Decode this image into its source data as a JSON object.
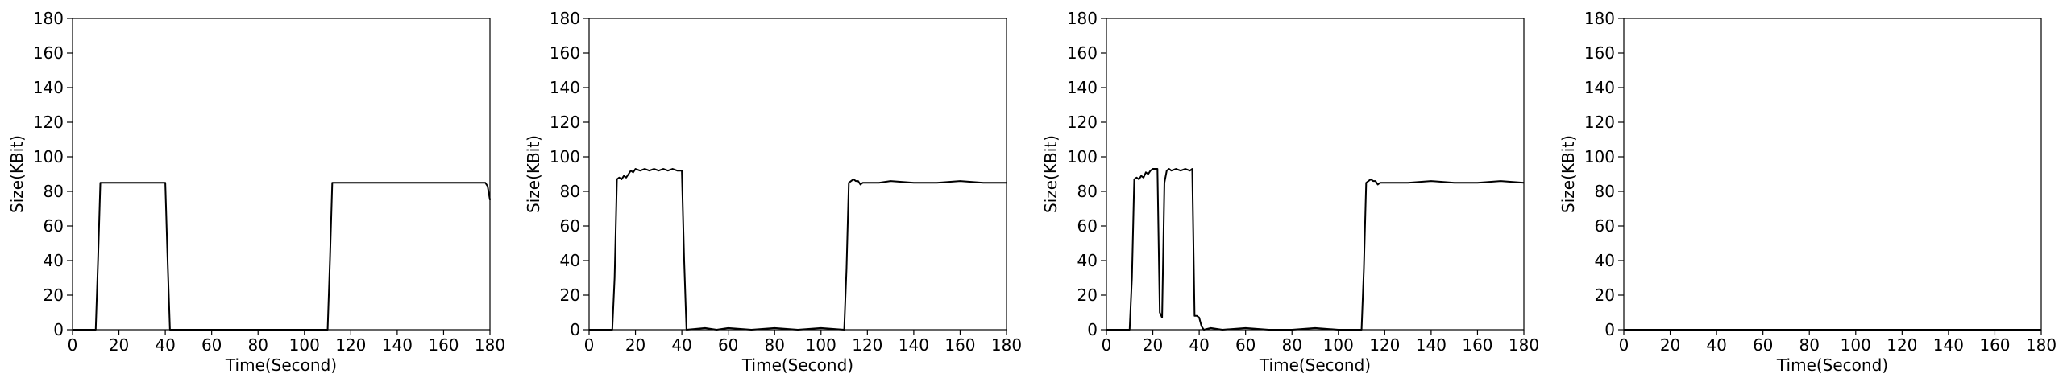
{
  "chart_data": [
    {
      "type": "line",
      "xlabel": "Time(Second)",
      "ylabel": "Size(KBit)",
      "xlim": [
        0,
        180
      ],
      "ylim": [
        0,
        180
      ],
      "xticks": [
        0,
        20,
        40,
        60,
        80,
        100,
        120,
        140,
        160,
        180
      ],
      "yticks": [
        0,
        20,
        40,
        60,
        80,
        100,
        120,
        140,
        160,
        180
      ],
      "grid": false,
      "line_color": "#000000",
      "series": [
        {
          "x": [
            0,
            10,
            11,
            12,
            20,
            30,
            39,
            40,
            41,
            42,
            60,
            80,
            100,
            110,
            111,
            112,
            130,
            150,
            170,
            178,
            179,
            180
          ],
          "y": [
            0,
            0,
            40,
            85,
            85,
            85,
            85,
            85,
            40,
            0,
            0,
            0,
            0,
            0,
            40,
            85,
            85,
            85,
            85,
            85,
            83,
            75
          ]
        }
      ]
    },
    {
      "type": "line",
      "xlabel": "Time(Second)",
      "ylabel": "Size(KBit)",
      "xlim": [
        0,
        180
      ],
      "ylim": [
        0,
        180
      ],
      "xticks": [
        0,
        20,
        40,
        60,
        80,
        100,
        120,
        140,
        160,
        180
      ],
      "yticks": [
        0,
        20,
        40,
        60,
        80,
        100,
        120,
        140,
        160,
        180
      ],
      "grid": false,
      "line_color": "#000000",
      "series": [
        {
          "x": [
            0,
            10,
            11,
            12,
            13,
            14,
            15,
            16,
            17,
            18,
            19,
            20,
            22,
            24,
            26,
            28,
            30,
            32,
            34,
            36,
            38,
            40,
            41,
            42,
            50,
            55,
            60,
            70,
            80,
            90,
            100,
            110,
            111,
            112,
            113,
            114,
            115,
            116,
            117,
            118,
            120,
            125,
            130,
            140,
            150,
            160,
            170,
            180
          ],
          "y": [
            0,
            0,
            30,
            87,
            88,
            87,
            89,
            88,
            90,
            92,
            91,
            93,
            92,
            93,
            92,
            93,
            92,
            93,
            92,
            93,
            92,
            92,
            40,
            0,
            1,
            0,
            1,
            0,
            1,
            0,
            1,
            0,
            35,
            85,
            86,
            87,
            86,
            86,
            84,
            85,
            85,
            85,
            86,
            85,
            85,
            86,
            85,
            85
          ]
        }
      ]
    },
    {
      "type": "line",
      "xlabel": "Time(Second)",
      "ylabel": "Size(KBit)",
      "xlim": [
        0,
        180
      ],
      "ylim": [
        0,
        180
      ],
      "xticks": [
        0,
        20,
        40,
        60,
        80,
        100,
        120,
        140,
        160,
        180
      ],
      "yticks": [
        0,
        20,
        40,
        60,
        80,
        100,
        120,
        140,
        160,
        180
      ],
      "grid": false,
      "line_color": "#000000",
      "series": [
        {
          "x": [
            0,
            10,
            11,
            12,
            13,
            14,
            15,
            16,
            17,
            18,
            19,
            20,
            21,
            22,
            23,
            24,
            25,
            26,
            27,
            28,
            30,
            32,
            34,
            36,
            37,
            38,
            39,
            40,
            41,
            42,
            45,
            50,
            60,
            70,
            80,
            90,
            100,
            110,
            111,
            112,
            113,
            114,
            115,
            116,
            117,
            118,
            120,
            130,
            140,
            150,
            160,
            170,
            180
          ],
          "y": [
            0,
            0,
            30,
            87,
            88,
            87,
            89,
            88,
            91,
            90,
            92,
            93,
            93,
            93,
            10,
            7,
            85,
            92,
            93,
            92,
            93,
            92,
            93,
            92,
            93,
            8,
            8,
            7,
            2,
            0,
            1,
            0,
            1,
            0,
            0,
            1,
            0,
            0,
            35,
            85,
            86,
            87,
            86,
            86,
            84,
            85,
            85,
            85,
            86,
            85,
            85,
            86,
            85
          ]
        }
      ]
    },
    {
      "type": "line",
      "xlabel": "Time(Second)",
      "ylabel": "Size(KBit)",
      "xlim": [
        0,
        180
      ],
      "ylim": [
        0,
        180
      ],
      "xticks": [
        0,
        20,
        40,
        60,
        80,
        100,
        120,
        140,
        160,
        180
      ],
      "yticks": [
        0,
        20,
        40,
        60,
        80,
        100,
        120,
        140,
        160,
        180
      ],
      "grid": false,
      "line_color": "#000000",
      "series": [
        {
          "x": [
            0,
            180
          ],
          "y": [
            0,
            0
          ]
        }
      ]
    }
  ]
}
